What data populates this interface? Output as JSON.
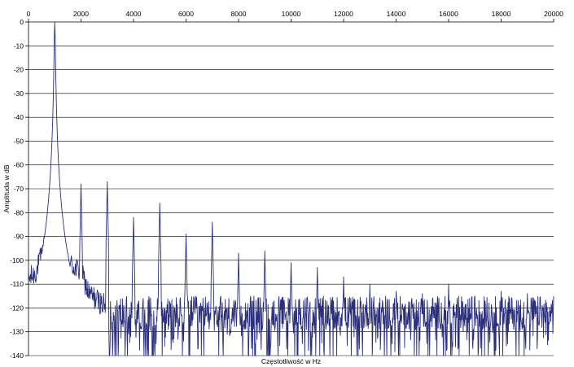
{
  "chart_data": {
    "type": "line",
    "title": "",
    "xlabel": "Częstotliwość w Hz",
    "ylabel": "Amplituda w dB",
    "xlim": [
      0,
      20000
    ],
    "ylim": [
      -140,
      0
    ],
    "xticks": [
      0,
      2000,
      4000,
      6000,
      8000,
      10000,
      12000,
      14000,
      16000,
      18000,
      20000
    ],
    "yticks": [
      0,
      -10,
      -20,
      -30,
      -40,
      -50,
      -60,
      -70,
      -80,
      -90,
      -100,
      -110,
      -120,
      -130,
      -140
    ],
    "x_axis_position": "top",
    "grid": "horizontal",
    "series": [
      {
        "color": "#2b2f7a",
        "fundamental": {
          "x": 1000,
          "y": 0
        },
        "harmonic_peaks": [
          {
            "x": 2000,
            "y": -68
          },
          {
            "x": 3000,
            "y": -67
          },
          {
            "x": 4000,
            "y": -82
          },
          {
            "x": 5000,
            "y": -76
          },
          {
            "x": 6000,
            "y": -89
          },
          {
            "x": 7000,
            "y": -84
          },
          {
            "x": 8000,
            "y": -97
          },
          {
            "x": 9000,
            "y": -96
          },
          {
            "x": 10000,
            "y": -101
          },
          {
            "x": 11000,
            "y": -103
          },
          {
            "x": 12000,
            "y": -107
          },
          {
            "x": 13000,
            "y": -110
          },
          {
            "x": 14000,
            "y": -113
          },
          {
            "x": 15000,
            "y": -114
          },
          {
            "x": 16000,
            "y": -110
          },
          {
            "x": 17000,
            "y": -115
          },
          {
            "x": 18000,
            "y": -113
          },
          {
            "x": 19000,
            "y": -114
          },
          {
            "x": 20000,
            "y": -115
          }
        ],
        "noise_floor_db": -122,
        "noise_spread_db": [
          -140,
          -113
        ],
        "low_freq_floor": [
          {
            "x": 0,
            "y": -108
          },
          {
            "x": 300,
            "y": -105
          },
          {
            "x": 600,
            "y": -94
          },
          {
            "x": 2000,
            "y": -105
          },
          {
            "x": 2300,
            "y": -114
          },
          {
            "x": 3000,
            "y": -120
          }
        ]
      }
    ]
  }
}
